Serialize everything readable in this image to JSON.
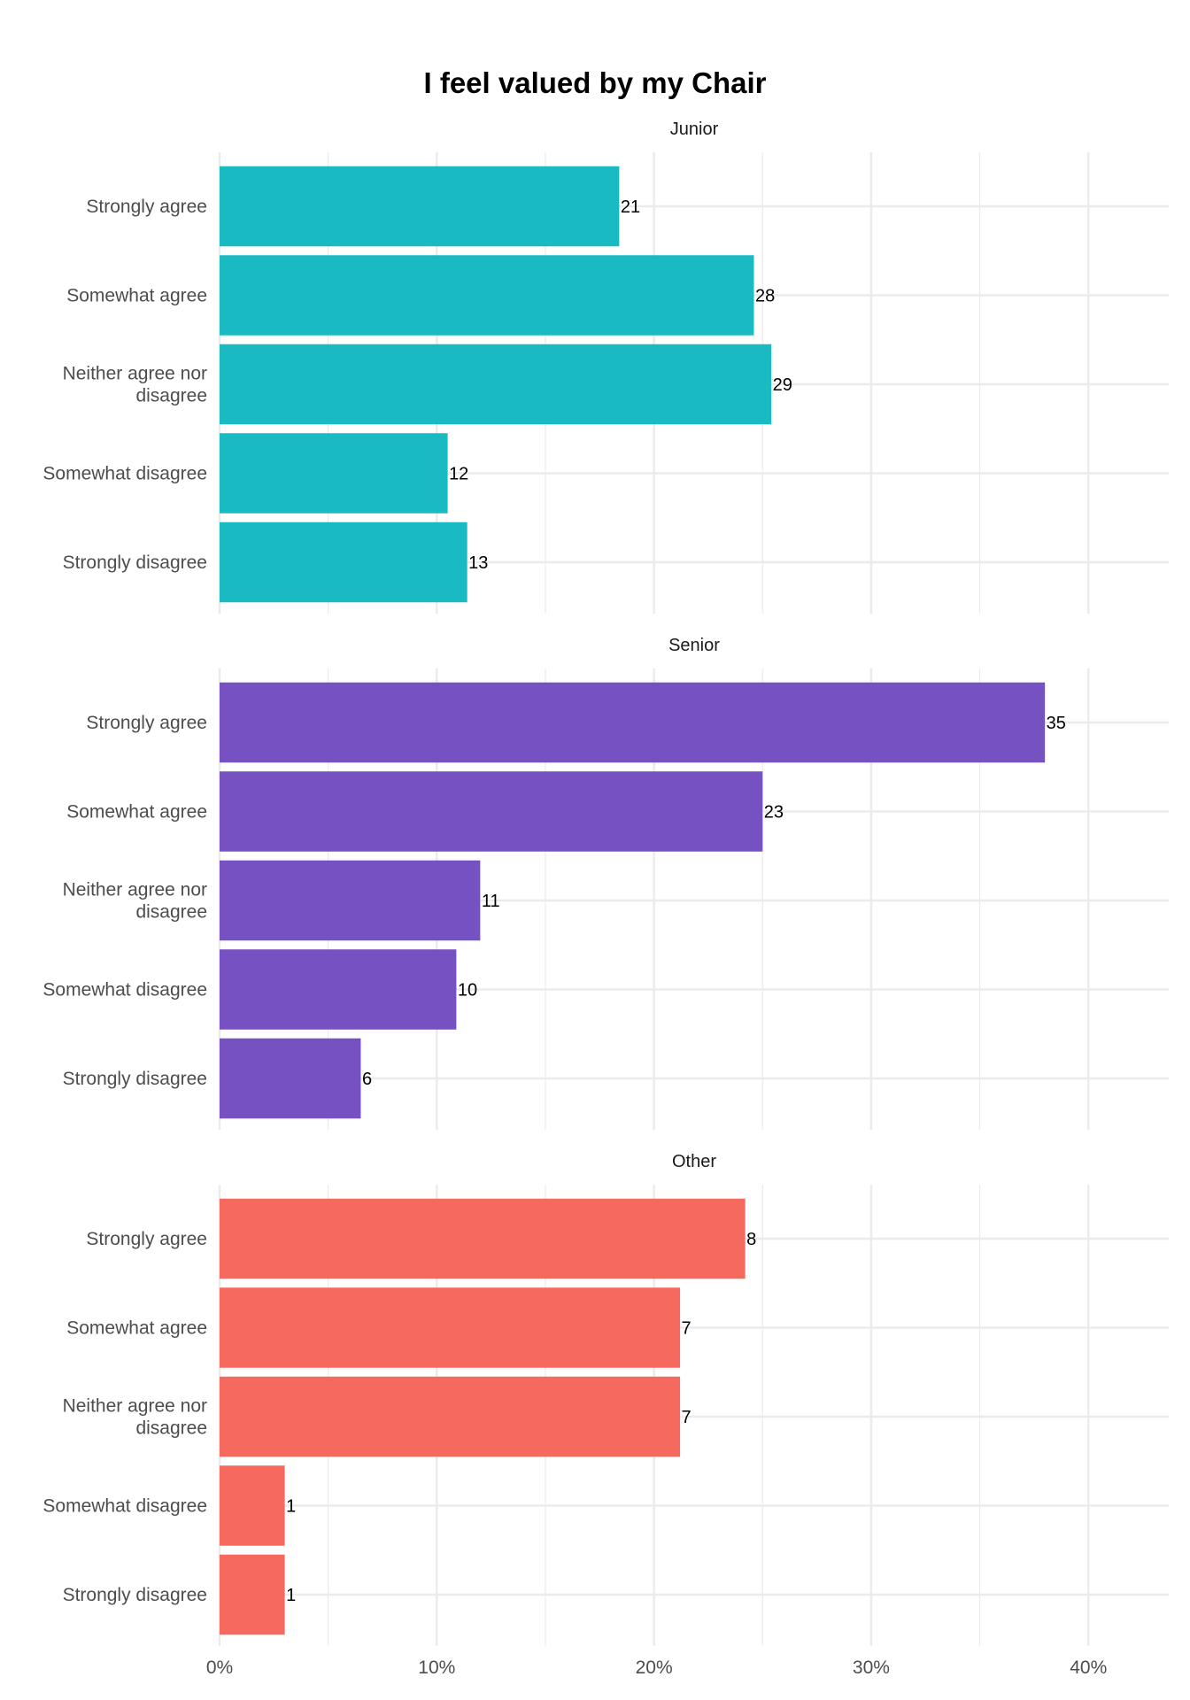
{
  "chart_data": {
    "type": "bar",
    "orientation": "horizontal",
    "title": "I feel valued by my Chair",
    "xlabel": "",
    "ylabel": "",
    "xlim": [
      0,
      0.437
    ],
    "x_ticks": [
      {
        "value": 0,
        "label": "0%"
      },
      {
        "value": 0.1,
        "label": "10%"
      },
      {
        "value": 0.2,
        "label": "20%"
      },
      {
        "value": 0.3,
        "label": "30%"
      },
      {
        "value": 0.4,
        "label": "40%"
      }
    ],
    "categories": [
      {
        "lines": [
          "Strongly agree"
        ]
      },
      {
        "lines": [
          "Somewhat agree"
        ]
      },
      {
        "lines": [
          "Neither agree nor",
          "disagree"
        ]
      },
      {
        "lines": [
          "Somewhat disagree"
        ]
      },
      {
        "lines": [
          "Strongly disagree"
        ]
      }
    ],
    "grid": true,
    "legend": "none",
    "facets": [
      {
        "name": "Junior",
        "color": "#19bac2",
        "counts": [
          21,
          28,
          29,
          12,
          13
        ],
        "values": [
          0.184,
          0.246,
          0.254,
          0.105,
          0.114
        ]
      },
      {
        "name": "Senior",
        "color": "#7651c2",
        "counts": [
          35,
          23,
          11,
          10,
          6
        ],
        "values": [
          0.38,
          0.25,
          0.12,
          0.109,
          0.065
        ]
      },
      {
        "name": "Other",
        "color": "#f5695f",
        "counts": [
          8,
          7,
          7,
          1,
          1
        ],
        "values": [
          0.242,
          0.212,
          0.212,
          0.03,
          0.03
        ]
      }
    ]
  }
}
